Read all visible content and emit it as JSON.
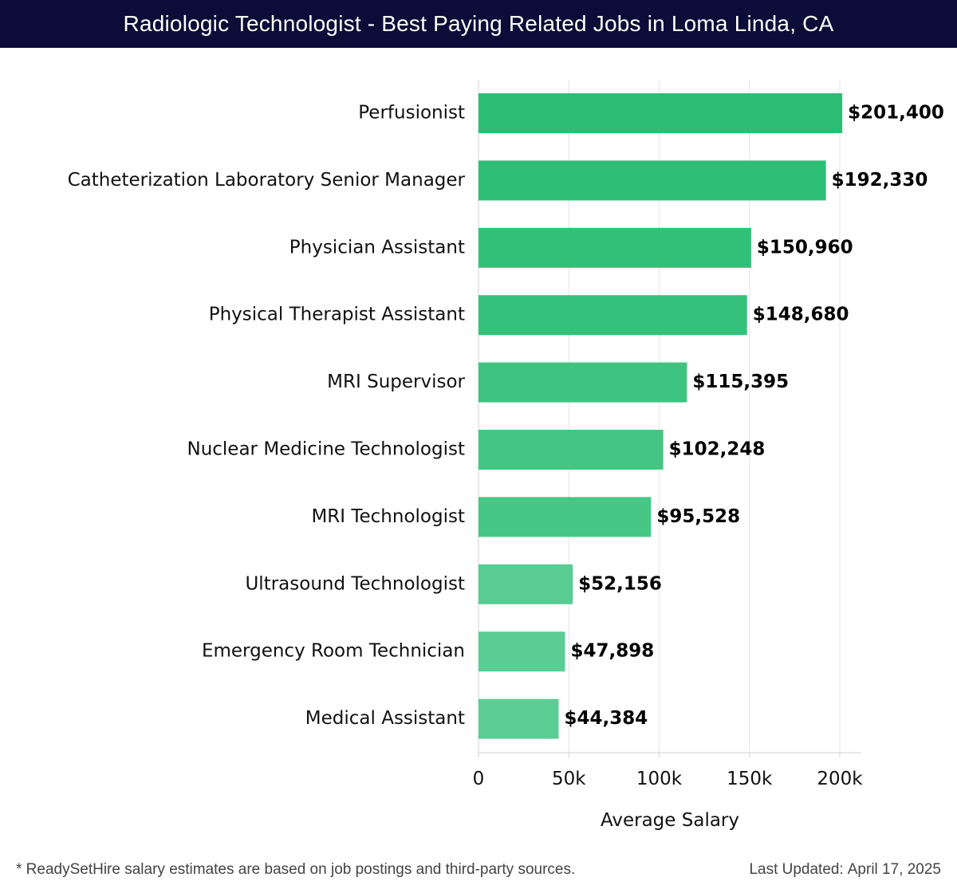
{
  "header": {
    "title": "Radiologic Technologist - Best Paying Related Jobs in Loma Linda, CA"
  },
  "chart_data": {
    "type": "bar",
    "orientation": "horizontal",
    "categories": [
      "Perfusionist",
      "Catheterization Laboratory Senior Manager",
      "Physician Assistant",
      "Physical Therapist Assistant",
      "MRI Supervisor",
      "Nuclear Medicine Technologist",
      "MRI Technologist",
      "Ultrasound Technologist",
      "Emergency Room Technician",
      "Medical Assistant"
    ],
    "values": [
      201400,
      192330,
      150960,
      148680,
      115395,
      102248,
      95528,
      52156,
      47898,
      44384
    ],
    "value_labels": [
      "$201,400",
      "$192,330",
      "$150,960",
      "$148,680",
      "$115,395",
      "$102,248",
      "$95,528",
      "$52,156",
      "$47,898",
      "$44,384"
    ],
    "bar_colors": [
      "#2bbd74",
      "#2ebe76",
      "#32c079",
      "#35c17b",
      "#3ec480",
      "#43c583",
      "#47c786",
      "#58cc92",
      "#5acd94",
      "#5ccd95"
    ],
    "xlabel": "Average Salary",
    "xlim": [
      0,
      212000
    ],
    "xticks": [
      0,
      50000,
      100000,
      150000,
      200000
    ],
    "xtick_labels": [
      "0",
      "50k",
      "100k",
      "150k",
      "200k"
    ],
    "grid": "vertical",
    "legend": "none"
  },
  "footer": {
    "note": "* ReadySetHire salary estimates are based on job postings and third-party sources.",
    "updated_label": "Last Updated:",
    "updated_date": "April 17, 2025"
  }
}
